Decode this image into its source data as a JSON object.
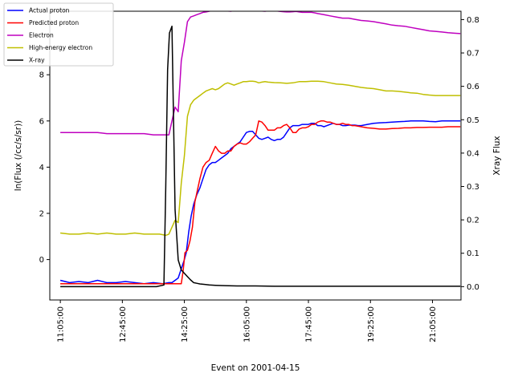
{
  "chart_data": {
    "type": "line",
    "xlabel": "Event on 2001-04-15",
    "ylabel_left": "ln(Flux (/cc/s/sr))",
    "ylabel_right": "Xray Flux",
    "x_ticks": [
      "11:05:00",
      "12:45:00",
      "14:25:00",
      "16:05:00",
      "17:45:00",
      "19:25:00",
      "21:05:00"
    ],
    "x_tick_minutes": [
      665,
      765,
      865,
      965,
      1065,
      1165,
      1265
    ],
    "xlim_minutes": [
      648,
      1311
    ],
    "left_ticks": [
      0,
      2,
      4,
      6,
      8
    ],
    "ylim_left": [
      -1.75,
      10.75
    ],
    "right_ticks": [
      "0.0",
      "0.1",
      "0.2",
      "0.3",
      "0.4",
      "0.5",
      "0.6",
      "0.7",
      "0.8"
    ],
    "right_tick_values": [
      0.0,
      0.1,
      0.2,
      0.3,
      0.4,
      0.5,
      0.6,
      0.7,
      0.8
    ],
    "ylim_right": [
      -0.04,
      0.825
    ],
    "legend_position": "upper-left",
    "series": [
      {
        "name": "Actual proton",
        "color": "#0000ff",
        "axis": "left",
        "x": [
          665,
          680,
          695,
          710,
          725,
          740,
          755,
          770,
          785,
          800,
          815,
          830,
          840,
          845,
          850,
          855,
          860,
          865,
          868,
          872,
          876,
          880,
          885,
          890,
          895,
          900,
          905,
          910,
          915,
          920,
          925,
          930,
          935,
          940,
          945,
          950,
          955,
          960,
          965,
          970,
          975,
          980,
          985,
          990,
          995,
          1000,
          1005,
          1010,
          1015,
          1020,
          1025,
          1030,
          1035,
          1040,
          1045,
          1050,
          1055,
          1060,
          1065,
          1070,
          1075,
          1080,
          1085,
          1090,
          1095,
          1100,
          1105,
          1110,
          1115,
          1120,
          1125,
          1130,
          1135,
          1140,
          1145,
          1150,
          1160,
          1170,
          1180,
          1190,
          1200,
          1210,
          1220,
          1230,
          1240,
          1250,
          1260,
          1270,
          1280,
          1290,
          1300,
          1310
        ],
        "y": [
          -0.9,
          -1.0,
          -0.95,
          -1.0,
          -0.9,
          -1.0,
          -1.0,
          -0.95,
          -1.0,
          -1.05,
          -1.0,
          -1.05,
          -1.0,
          -1.0,
          -0.9,
          -0.8,
          -0.4,
          0.0,
          0.3,
          1.2,
          1.9,
          2.4,
          2.8,
          3.1,
          3.5,
          3.9,
          4.1,
          4.2,
          4.2,
          4.3,
          4.4,
          4.5,
          4.6,
          4.8,
          4.9,
          5.0,
          5.1,
          5.3,
          5.5,
          5.55,
          5.55,
          5.4,
          5.25,
          5.2,
          5.25,
          5.3,
          5.2,
          5.15,
          5.2,
          5.2,
          5.3,
          5.5,
          5.7,
          5.8,
          5.8,
          5.8,
          5.85,
          5.85,
          5.85,
          5.9,
          5.9,
          5.8,
          5.8,
          5.75,
          5.8,
          5.85,
          5.9,
          5.85,
          5.85,
          5.8,
          5.8,
          5.82,
          5.82,
          5.82,
          5.8,
          5.8,
          5.85,
          5.9,
          5.92,
          5.93,
          5.95,
          5.97,
          5.98,
          6.0,
          6.0,
          6.0,
          5.98,
          5.97,
          6.0,
          6.0,
          6.0,
          6.0
        ]
      },
      {
        "name": "Predicted proton",
        "color": "#ff0000",
        "axis": "left",
        "x": [
          665,
          680,
          695,
          710,
          725,
          740,
          755,
          770,
          785,
          800,
          815,
          830,
          840,
          845,
          850,
          855,
          860,
          863,
          866,
          870,
          874,
          878,
          882,
          886,
          890,
          895,
          900,
          905,
          910,
          915,
          920,
          925,
          930,
          935,
          940,
          945,
          950,
          955,
          960,
          965,
          970,
          975,
          980,
          985,
          990,
          995,
          1000,
          1005,
          1010,
          1015,
          1020,
          1025,
          1030,
          1035,
          1040,
          1045,
          1050,
          1055,
          1060,
          1065,
          1070,
          1075,
          1080,
          1085,
          1090,
          1095,
          1100,
          1105,
          1110,
          1115,
          1120,
          1125,
          1130,
          1135,
          1140,
          1150,
          1160,
          1170,
          1180,
          1190,
          1200,
          1210,
          1220,
          1230,
          1240,
          1250,
          1260,
          1270,
          1280,
          1290,
          1300,
          1310
        ],
        "y": [
          -1.05,
          -1.05,
          -1.05,
          -1.05,
          -1.05,
          -1.05,
          -1.05,
          -1.05,
          -1.05,
          -1.05,
          -1.05,
          -1.05,
          -1.05,
          -1.05,
          -1.05,
          -1.05,
          -1.05,
          -0.5,
          0.3,
          0.4,
          0.8,
          1.4,
          2.5,
          3.0,
          3.5,
          4.0,
          4.2,
          4.3,
          4.6,
          4.9,
          4.7,
          4.6,
          4.6,
          4.7,
          4.7,
          4.9,
          5.0,
          5.05,
          5.0,
          5.0,
          5.1,
          5.25,
          5.4,
          6.0,
          5.95,
          5.8,
          5.6,
          5.6,
          5.6,
          5.7,
          5.7,
          5.8,
          5.85,
          5.7,
          5.5,
          5.5,
          5.65,
          5.7,
          5.7,
          5.75,
          5.85,
          5.85,
          5.95,
          6.0,
          6.0,
          5.95,
          5.95,
          5.9,
          5.85,
          5.85,
          5.9,
          5.85,
          5.85,
          5.8,
          5.8,
          5.75,
          5.7,
          5.68,
          5.65,
          5.65,
          5.67,
          5.68,
          5.7,
          5.7,
          5.72,
          5.72,
          5.73,
          5.73,
          5.73,
          5.75,
          5.75,
          5.75
        ]
      },
      {
        "name": "Electron",
        "color": "#bf00bf",
        "axis": "left",
        "x": [
          665,
          680,
          695,
          710,
          725,
          740,
          755,
          770,
          785,
          800,
          815,
          830,
          840,
          845,
          850,
          855,
          860,
          865,
          870,
          875,
          880,
          885,
          890,
          895,
          900,
          905,
          910,
          915,
          920,
          925,
          930,
          935,
          940,
          945,
          950,
          955,
          960,
          965,
          970,
          975,
          980,
          985,
          990,
          995,
          1000,
          1005,
          1010,
          1015,
          1020,
          1025,
          1030,
          1035,
          1040,
          1045,
          1050,
          1055,
          1060,
          1065,
          1070,
          1075,
          1080,
          1090,
          1100,
          1110,
          1120,
          1130,
          1140,
          1150,
          1160,
          1170,
          1180,
          1190,
          1200,
          1210,
          1220,
          1230,
          1240,
          1250,
          1260,
          1270,
          1280,
          1290,
          1300,
          1310
        ],
        "y": [
          5.5,
          5.5,
          5.5,
          5.5,
          5.5,
          5.45,
          5.45,
          5.45,
          5.45,
          5.45,
          5.4,
          5.4,
          5.4,
          6.0,
          6.6,
          6.4,
          8.6,
          9.4,
          10.3,
          10.5,
          10.55,
          10.6,
          10.65,
          10.7,
          10.72,
          10.75,
          10.78,
          10.8,
          10.82,
          10.8,
          10.78,
          10.76,
          10.75,
          10.78,
          10.8,
          10.82,
          10.8,
          10.78,
          10.76,
          10.76,
          10.78,
          10.78,
          10.76,
          10.75,
          10.77,
          10.78,
          10.78,
          10.76,
          10.74,
          10.73,
          10.72,
          10.72,
          10.73,
          10.74,
          10.72,
          10.7,
          10.7,
          10.7,
          10.7,
          10.68,
          10.65,
          10.6,
          10.55,
          10.5,
          10.45,
          10.45,
          10.4,
          10.35,
          10.33,
          10.3,
          10.25,
          10.2,
          10.15,
          10.12,
          10.1,
          10.05,
          10.0,
          9.95,
          9.9,
          9.88,
          9.85,
          9.82,
          9.8,
          9.78
        ]
      },
      {
        "name": "High-energy electron",
        "color": "#bfbf00",
        "axis": "left",
        "x": [
          665,
          680,
          695,
          710,
          725,
          740,
          755,
          770,
          785,
          800,
          815,
          825,
          835,
          840,
          845,
          850,
          855,
          860,
          865,
          870,
          875,
          880,
          885,
          890,
          895,
          900,
          905,
          910,
          915,
          920,
          925,
          930,
          935,
          940,
          945,
          950,
          955,
          960,
          965,
          970,
          975,
          980,
          985,
          990,
          995,
          1000,
          1010,
          1020,
          1030,
          1040,
          1050,
          1060,
          1070,
          1080,
          1090,
          1100,
          1110,
          1120,
          1130,
          1140,
          1150,
          1160,
          1170,
          1180,
          1190,
          1200,
          1210,
          1220,
          1230,
          1240,
          1250,
          1260,
          1270,
          1280,
          1290,
          1300,
          1310
        ],
        "y": [
          1.15,
          1.1,
          1.1,
          1.15,
          1.1,
          1.15,
          1.1,
          1.1,
          1.15,
          1.1,
          1.1,
          1.1,
          1.05,
          1.1,
          1.4,
          1.7,
          1.6,
          3.3,
          4.5,
          6.2,
          6.7,
          6.9,
          7.0,
          7.1,
          7.2,
          7.3,
          7.35,
          7.4,
          7.35,
          7.4,
          7.5,
          7.6,
          7.65,
          7.6,
          7.55,
          7.6,
          7.65,
          7.7,
          7.7,
          7.72,
          7.72,
          7.7,
          7.65,
          7.68,
          7.7,
          7.68,
          7.66,
          7.65,
          7.63,
          7.65,
          7.7,
          7.7,
          7.72,
          7.72,
          7.7,
          7.65,
          7.6,
          7.58,
          7.55,
          7.5,
          7.45,
          7.42,
          7.4,
          7.35,
          7.3,
          7.3,
          7.28,
          7.25,
          7.22,
          7.2,
          7.15,
          7.12,
          7.1,
          7.1,
          7.1,
          7.1,
          7.1
        ]
      },
      {
        "name": "X-ray",
        "color": "#000000",
        "axis": "right",
        "x": [
          665,
          700,
          740,
          780,
          820,
          832,
          835,
          838,
          841,
          845,
          850,
          855,
          860,
          865,
          870,
          875,
          880,
          885,
          890,
          895,
          905,
          915,
          930,
          950,
          980,
          1010,
          1050,
          1100,
          1150,
          1200,
          1250,
          1290,
          1310
        ],
        "y": [
          0.0,
          0.0,
          0.0,
          0.0,
          0.0,
          0.005,
          0.3,
          0.65,
          0.76,
          0.78,
          0.23,
          0.08,
          0.05,
          0.04,
          0.03,
          0.02,
          0.012,
          0.01,
          0.008,
          0.007,
          0.005,
          0.004,
          0.003,
          0.002,
          0.002,
          0.001,
          0.001,
          0.001,
          0.001,
          0.001,
          0.001,
          0.001,
          0.001
        ]
      }
    ]
  }
}
